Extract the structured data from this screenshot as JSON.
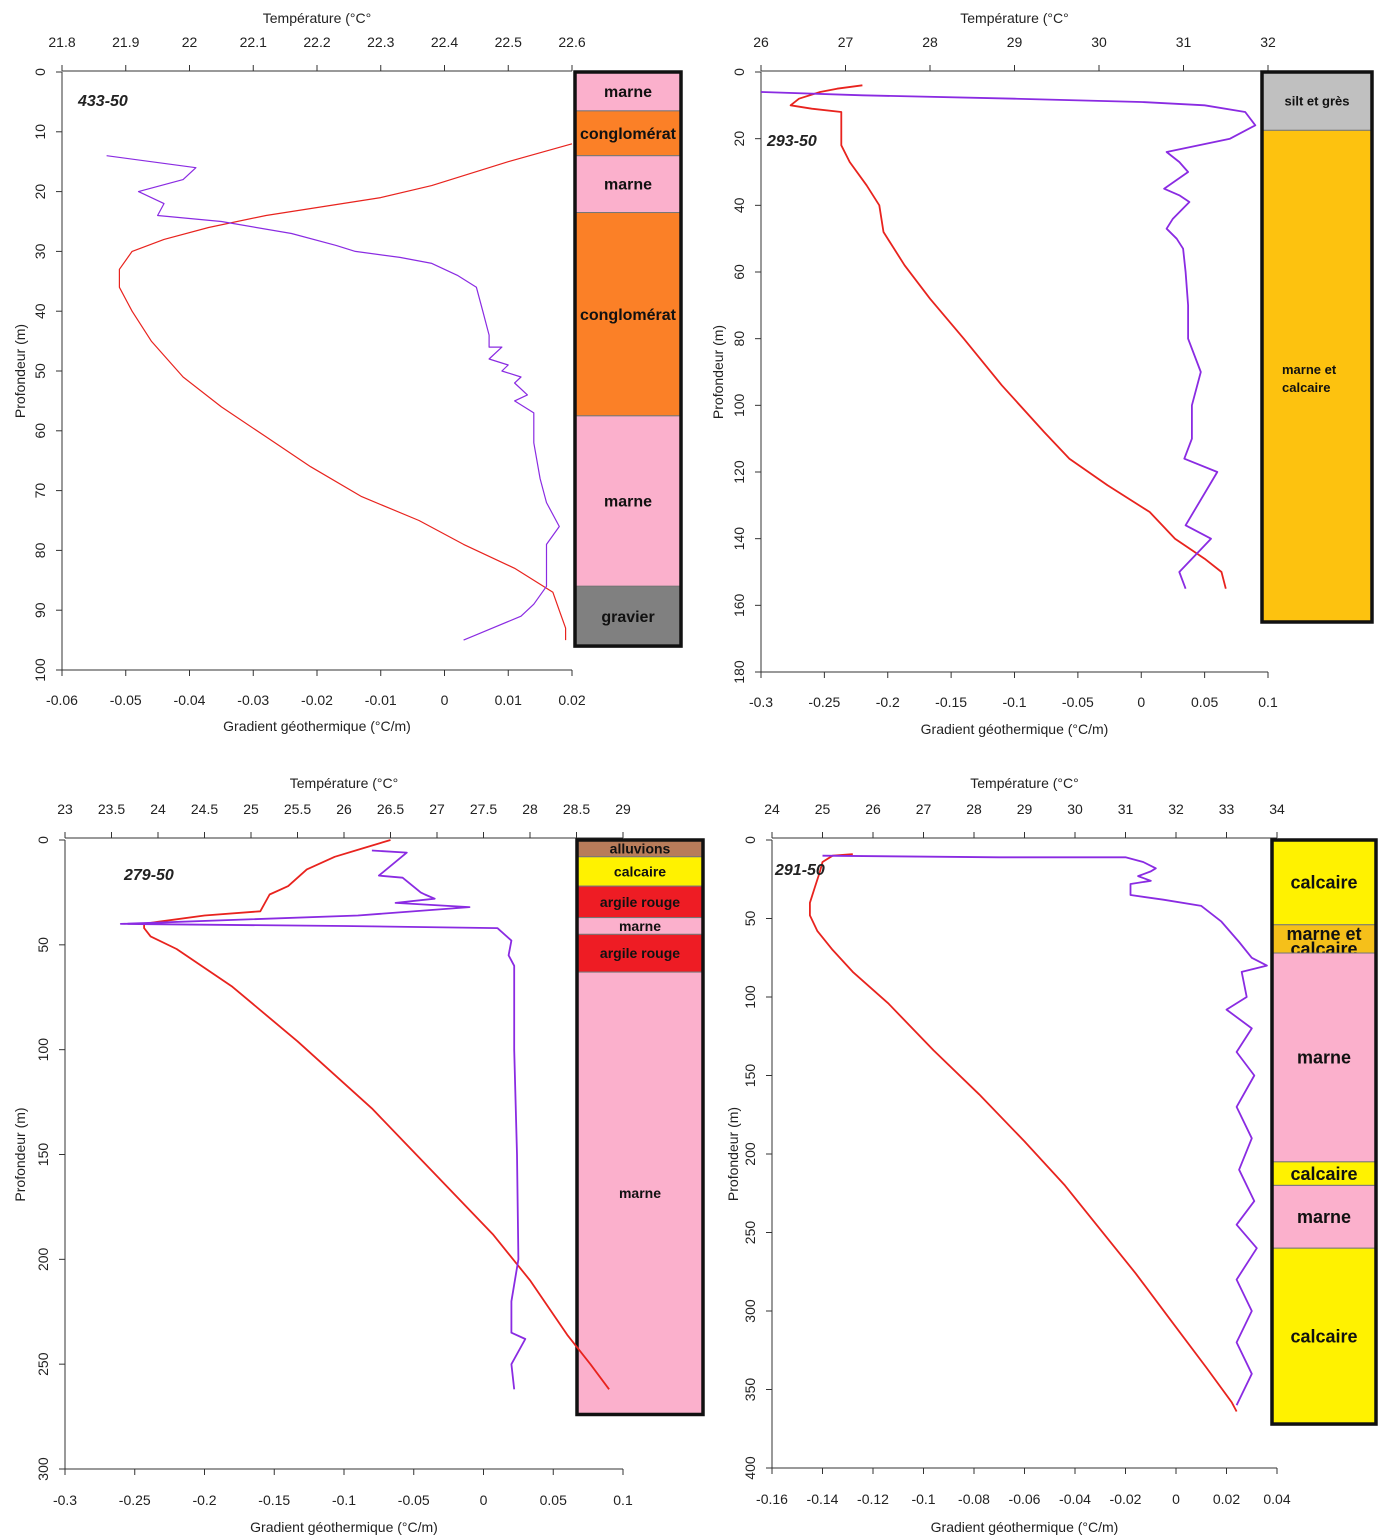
{
  "colors": {
    "temperature_line": "#e8231e",
    "gradient_line": "#8a2be2",
    "marne": "#fbb0cc",
    "conglomerat": "#fb8027",
    "gravier": "#808080",
    "silt_gres": "#c0c0c0",
    "marne_calcaire_orange": "#fdc20f",
    "marne_calcaire_yellow": "#f5c01a",
    "alluvions": "#b87c5a",
    "calcaire": "#fff200",
    "argile_rouge": "#ee1c24"
  },
  "chart_data": [
    {
      "type": "line",
      "well_label": "433-50",
      "top_axis_label": "Température (°C°",
      "bottom_axis_label": "Gradient géothermique (°C/m)",
      "y_axis_label": "Profondeur (m)",
      "temp_lim": [
        21.8,
        22.6
      ],
      "temp_ticks": [
        "21.8",
        "21.9",
        "22",
        "22.1",
        "22.2",
        "22.3",
        "22.4",
        "22.5",
        "22.6"
      ],
      "grad_lim": [
        -0.06,
        0.02
      ],
      "grad_ticks": [
        "-0.06",
        "-0.05",
        "-0.04",
        "-0.03",
        "-0.02",
        "-0.01",
        "0",
        "0.01",
        "0.02"
      ],
      "depth_lim": [
        0,
        100
      ],
      "depth_ticks": [
        "0",
        "10",
        "20",
        "30",
        "40",
        "50",
        "60",
        "70",
        "80",
        "90",
        "100"
      ],
      "temperature": [
        [
          22.6,
          12
        ],
        [
          22.5,
          15
        ],
        [
          22.38,
          19
        ],
        [
          22.3,
          21
        ],
        [
          22.12,
          24
        ],
        [
          22.03,
          26
        ],
        [
          21.96,
          28
        ],
        [
          21.91,
          30
        ],
        [
          21.89,
          33
        ],
        [
          21.89,
          36
        ],
        [
          21.91,
          40
        ],
        [
          21.94,
          45
        ],
        [
          21.99,
          51
        ],
        [
          22.05,
          56
        ],
        [
          22.12,
          61
        ],
        [
          22.19,
          66
        ],
        [
          22.27,
          71
        ],
        [
          22.36,
          75
        ],
        [
          22.43,
          79
        ],
        [
          22.51,
          83
        ],
        [
          22.57,
          87
        ],
        [
          22.58,
          90
        ],
        [
          22.59,
          93
        ],
        [
          22.59,
          95
        ]
      ],
      "gradient": [
        [
          -0.053,
          14
        ],
        [
          -0.039,
          16
        ],
        [
          -0.041,
          18
        ],
        [
          -0.048,
          20
        ],
        [
          -0.044,
          22
        ],
        [
          -0.045,
          24
        ],
        [
          -0.035,
          25
        ],
        [
          -0.024,
          27
        ],
        [
          -0.017,
          29
        ],
        [
          -0.014,
          30
        ],
        [
          -0.007,
          31
        ],
        [
          -0.002,
          32
        ],
        [
          0.002,
          34
        ],
        [
          0.005,
          36
        ],
        [
          0.006,
          40
        ],
        [
          0.007,
          44
        ],
        [
          0.007,
          46
        ],
        [
          0.009,
          46
        ],
        [
          0.007,
          48
        ],
        [
          0.01,
          49
        ],
        [
          0.009,
          50
        ],
        [
          0.012,
          51
        ],
        [
          0.011,
          52
        ],
        [
          0.013,
          54
        ],
        [
          0.011,
          55
        ],
        [
          0.014,
          57
        ],
        [
          0.014,
          62
        ],
        [
          0.015,
          68
        ],
        [
          0.016,
          72
        ],
        [
          0.018,
          76
        ],
        [
          0.016,
          79
        ],
        [
          0.016,
          83
        ],
        [
          0.016,
          86
        ],
        [
          0.014,
          89
        ],
        [
          0.012,
          91
        ],
        [
          0.003,
          95
        ]
      ],
      "lithology": [
        {
          "label": "marne",
          "top": 0,
          "bottom": 6.5,
          "color": "#fbb0cc"
        },
        {
          "label": "conglomérat",
          "top": 6.5,
          "bottom": 14,
          "color": "#fb8027"
        },
        {
          "label": "marne",
          "top": 14,
          "bottom": 23.5,
          "color": "#fbb0cc"
        },
        {
          "label": "conglomérat",
          "top": 23.5,
          "bottom": 57.5,
          "color": "#fb8027"
        },
        {
          "label": "marne",
          "top": 57.5,
          "bottom": 86,
          "color": "#fbb0cc"
        },
        {
          "label": "gravier",
          "top": 86,
          "bottom": 96,
          "color": "#808080"
        }
      ]
    },
    {
      "type": "line",
      "well_label": "293-50",
      "top_axis_label": "Température (°C°",
      "bottom_axis_label": "Gradient géothermique (°C/m)",
      "y_axis_label": "Profondeur (m)",
      "temp_lim": [
        26,
        32
      ],
      "temp_ticks": [
        "26",
        "27",
        "28",
        "29",
        "30",
        "31",
        "32"
      ],
      "grad_lim": [
        -0.3,
        0.1
      ],
      "grad_ticks": [
        "-0.3",
        "-0.25",
        "-0.2",
        "-0.15",
        "-0.1",
        "-0.05",
        "0",
        "0.05",
        "0.1"
      ],
      "depth_lim": [
        0,
        180
      ],
      "depth_ticks": [
        "0",
        "20",
        "40",
        "60",
        "80",
        "100",
        "120",
        "140",
        "160",
        "180"
      ],
      "temperature": [
        [
          27.2,
          4
        ],
        [
          26.9,
          5
        ],
        [
          26.7,
          6
        ],
        [
          26.45,
          8
        ],
        [
          26.35,
          10
        ],
        [
          26.6,
          11
        ],
        [
          26.95,
          12
        ],
        [
          26.95,
          18
        ],
        [
          26.95,
          22
        ],
        [
          27.05,
          27
        ],
        [
          27.25,
          34
        ],
        [
          27.4,
          40
        ],
        [
          27.45,
          48
        ],
        [
          27.7,
          58
        ],
        [
          28,
          68
        ],
        [
          28.4,
          80
        ],
        [
          28.85,
          94
        ],
        [
          29.35,
          108
        ],
        [
          29.65,
          116
        ],
        [
          30.1,
          124
        ],
        [
          30.6,
          132
        ],
        [
          30.9,
          140
        ],
        [
          31.25,
          146
        ],
        [
          31.45,
          150
        ],
        [
          31.5,
          155
        ]
      ],
      "gradient": [
        [
          -0.3,
          6
        ],
        [
          -0.22,
          7
        ],
        [
          -0.1,
          8
        ],
        [
          0,
          9
        ],
        [
          0.05,
          10
        ],
        [
          0.082,
          12
        ],
        [
          0.09,
          16
        ],
        [
          0.07,
          20
        ],
        [
          0.02,
          24
        ],
        [
          0.03,
          27
        ],
        [
          0.037,
          30
        ],
        [
          0.018,
          35
        ],
        [
          0.03,
          37
        ],
        [
          0.038,
          39
        ],
        [
          0.025,
          44
        ],
        [
          0.02,
          47
        ],
        [
          0.028,
          50
        ],
        [
          0.033,
          53
        ],
        [
          0.035,
          60
        ],
        [
          0.037,
          70
        ],
        [
          0.037,
          80
        ],
        [
          0.047,
          90
        ],
        [
          0.04,
          100
        ],
        [
          0.04,
          110
        ],
        [
          0.034,
          116
        ],
        [
          0.06,
          120
        ],
        [
          0.035,
          136
        ],
        [
          0.055,
          140
        ],
        [
          0.03,
          150
        ],
        [
          0.035,
          155
        ]
      ],
      "lithology": [
        {
          "label": "silt et grès",
          "top": 0,
          "bottom": 17.5,
          "color": "#c0c0c0"
        },
        {
          "label": "marne et calcaire",
          "top": 17.5,
          "bottom": 165,
          "color": "#fdc20f"
        }
      ]
    },
    {
      "type": "line",
      "well_label": "279-50",
      "top_axis_label": "Température (°C°",
      "bottom_axis_label": "Gradient géothermique (°C/m)",
      "y_axis_label": "Profondeur (m)",
      "temp_lim": [
        23,
        29
      ],
      "temp_ticks": [
        "23",
        "23.5",
        "24",
        "24.5",
        "25",
        "25.5",
        "26",
        "26.5",
        "27",
        "27.5",
        "28",
        "28.5",
        "29"
      ],
      "grad_lim": [
        -0.3,
        0.1
      ],
      "grad_ticks": [
        "-0.3",
        "-0.25",
        "-0.2",
        "-0.15",
        "-0.1",
        "-0.05",
        "0",
        "0.05",
        "0.1"
      ],
      "depth_lim": [
        0,
        300
      ],
      "depth_ticks": [
        "0",
        "50",
        "100",
        "150",
        "200",
        "250",
        "300"
      ],
      "temperature": [
        [
          26.5,
          0
        ],
        [
          26.2,
          4
        ],
        [
          25.9,
          8
        ],
        [
          25.6,
          14
        ],
        [
          25.4,
          22
        ],
        [
          25.2,
          26
        ],
        [
          25.1,
          34
        ],
        [
          24.5,
          36
        ],
        [
          24,
          39
        ],
        [
          23.85,
          40
        ],
        [
          23.85,
          42
        ],
        [
          23.92,
          46
        ],
        [
          24.2,
          52
        ],
        [
          24.8,
          70
        ],
        [
          25.5,
          96
        ],
        [
          26.3,
          128
        ],
        [
          26.95,
          158
        ],
        [
          27.6,
          188
        ],
        [
          28,
          210
        ],
        [
          28.4,
          236
        ],
        [
          28.65,
          250
        ],
        [
          28.85,
          262
        ]
      ],
      "gradient": [
        [
          -0.08,
          5
        ],
        [
          -0.055,
          6
        ],
        [
          -0.075,
          17
        ],
        [
          -0.058,
          18
        ],
        [
          -0.045,
          25
        ],
        [
          -0.042,
          26
        ],
        [
          -0.035,
          28
        ],
        [
          -0.063,
          30
        ],
        [
          -0.01,
          32
        ],
        [
          -0.09,
          36
        ],
        [
          -0.26,
          40
        ],
        [
          -0.1,
          41
        ],
        [
          0.01,
          42
        ],
        [
          0.02,
          48
        ],
        [
          0.018,
          55
        ],
        [
          0.022,
          60
        ],
        [
          0.022,
          100
        ],
        [
          0.024,
          150
        ],
        [
          0.025,
          200
        ],
        [
          0.02,
          220
        ],
        [
          0.02,
          235
        ],
        [
          0.03,
          238
        ],
        [
          0.02,
          250
        ],
        [
          0.022,
          262
        ]
      ],
      "lithology": [
        {
          "label": "alluvions",
          "top": 0,
          "bottom": 8,
          "color": "#b87c5a"
        },
        {
          "label": "calcaire",
          "top": 8,
          "bottom": 22,
          "color": "#fff200"
        },
        {
          "label": "argile rouge",
          "top": 22,
          "bottom": 37,
          "color": "#ee1c24"
        },
        {
          "label": "marne",
          "top": 37,
          "bottom": 45,
          "color": "#fbb0cc"
        },
        {
          "label": "argile rouge",
          "top": 45,
          "bottom": 63,
          "color": "#ee1c24"
        },
        {
          "label": "marne",
          "top": 63,
          "bottom": 274,
          "color": "#fbb0cc"
        }
      ]
    },
    {
      "type": "line",
      "well_label": "291-50",
      "top_axis_label": "Température (°C°",
      "bottom_axis_label": "Gradient géothermique (°C/m)",
      "y_axis_label": "Profondeur (m)",
      "temp_lim": [
        24,
        34
      ],
      "temp_ticks": [
        "24",
        "25",
        "26",
        "27",
        "28",
        "29",
        "30",
        "31",
        "32",
        "33",
        "34"
      ],
      "grad_lim": [
        -0.16,
        0.04
      ],
      "grad_ticks": [
        "-0.16",
        "-0.14",
        "-0.12",
        "-0.1",
        "-0.08",
        "-0.06",
        "-0.04",
        "-0.02",
        "0",
        "0.02",
        "0.04"
      ],
      "depth_lim": [
        0,
        400
      ],
      "depth_ticks": [
        "0",
        "50",
        "100",
        "150",
        "200",
        "250",
        "300",
        "350",
        "400"
      ],
      "temperature": [
        [
          25.6,
          9
        ],
        [
          25.2,
          10
        ],
        [
          25,
          14
        ],
        [
          24.95,
          20
        ],
        [
          24.85,
          30
        ],
        [
          24.75,
          40
        ],
        [
          24.75,
          48
        ],
        [
          24.9,
          58
        ],
        [
          25.2,
          70
        ],
        [
          25.6,
          84
        ],
        [
          26.3,
          104
        ],
        [
          27.2,
          134
        ],
        [
          28.1,
          162
        ],
        [
          29,
          192
        ],
        [
          29.8,
          220
        ],
        [
          30.5,
          248
        ],
        [
          31.2,
          276
        ],
        [
          31.9,
          306
        ],
        [
          32.6,
          336
        ],
        [
          33.1,
          358
        ],
        [
          33.2,
          364
        ]
      ],
      "gradient": [
        [
          -0.14,
          10
        ],
        [
          -0.07,
          11
        ],
        [
          -0.02,
          11
        ],
        [
          -0.013,
          14
        ],
        [
          -0.008,
          18
        ],
        [
          -0.01,
          20
        ],
        [
          -0.015,
          23
        ],
        [
          -0.01,
          26
        ],
        [
          -0.018,
          28
        ],
        [
          -0.018,
          35
        ],
        [
          -0.005,
          38
        ],
        [
          0.01,
          42
        ],
        [
          0.018,
          52
        ],
        [
          0.025,
          65
        ],
        [
          0.03,
          75
        ],
        [
          0.036,
          80
        ],
        [
          0.026,
          84
        ],
        [
          0.028,
          100
        ],
        [
          0.02,
          108
        ],
        [
          0.03,
          120
        ],
        [
          0.024,
          135
        ],
        [
          0.031,
          150
        ],
        [
          0.024,
          170
        ],
        [
          0.03,
          190
        ],
        [
          0.025,
          210
        ],
        [
          0.031,
          230
        ],
        [
          0.024,
          245
        ],
        [
          0.032,
          260
        ],
        [
          0.024,
          280
        ],
        [
          0.03,
          300
        ],
        [
          0.024,
          320
        ],
        [
          0.03,
          340
        ],
        [
          0.024,
          360
        ]
      ],
      "lithology": [
        {
          "label": "calcaire",
          "top": 0,
          "bottom": 54,
          "color": "#fff200"
        },
        {
          "label": "marne et calcaire",
          "top": 54,
          "bottom": 72,
          "color": "#f5c01a"
        },
        {
          "label": "marne",
          "top": 72,
          "bottom": 205,
          "color": "#fbb0cc"
        },
        {
          "label": "calcaire",
          "top": 205,
          "bottom": 220,
          "color": "#fff200"
        },
        {
          "label": "marne",
          "top": 220,
          "bottom": 260,
          "color": "#fbb0cc"
        },
        {
          "label": "calcaire",
          "top": 260,
          "bottom": 372,
          "color": "#fff200"
        }
      ]
    }
  ]
}
